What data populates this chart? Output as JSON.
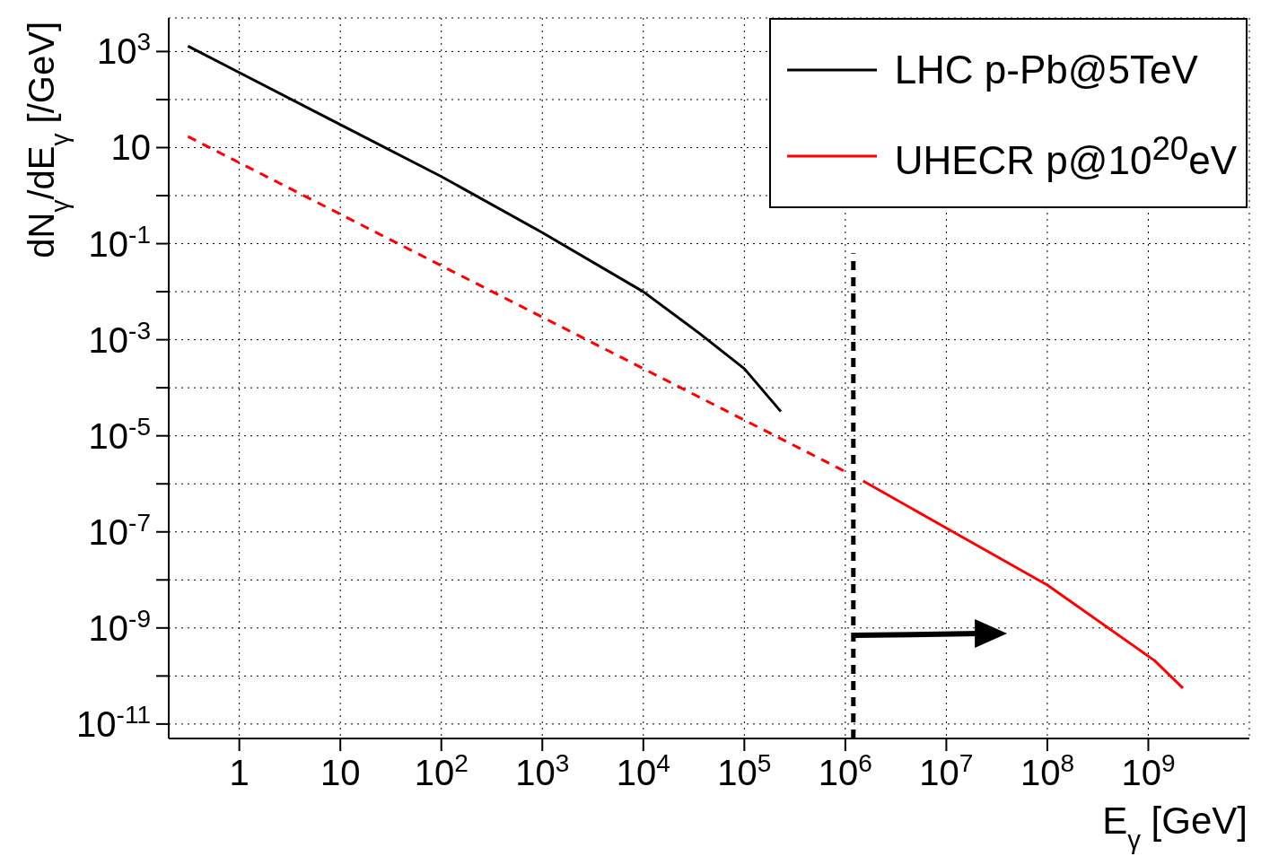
{
  "chart_data": {
    "type": "line",
    "xlabel": "E$_{γ}$ [GeV]",
    "ylabel": "dN$_{γ}$/dE$_{γ}$  [/GeV]",
    "log": "xy",
    "grid": true,
    "legend": "top right",
    "marker": "none",
    "xlim": [
      0.2,
      10000000000.0
    ],
    "xticks": [
      1,
      10,
      {
        "value": 100,
        "label": "10$^{2}$"
      },
      {
        "value": 1000,
        "label": "10$^{3}$"
      },
      {
        "value": 10000,
        "label": "10$^{4}$"
      },
      {
        "value": 100000,
        "label": "10$^{5}$"
      },
      {
        "value": 1000000,
        "label": "10$^{6}$"
      },
      {
        "value": 10000000,
        "label": "10$^{7}$"
      },
      {
        "value": 100000000,
        "label": "10$^{8}$"
      },
      {
        "value": 1000000000,
        "label": "10$^{9}$"
      }
    ],
    "ylim": [
      5e-12,
      5000
    ],
    "yticks": [
      {
        "value": 1e-11,
        "label": "10$^{-11}$"
      },
      {
        "value": 1e-10,
        "label": null
      },
      {
        "value": 1e-09,
        "label": "10$^{-9}$"
      },
      {
        "value": 1e-08,
        "label": null
      },
      {
        "value": 1e-07,
        "label": "10$^{-7}$"
      },
      {
        "value": 1e-06,
        "label": null
      },
      {
        "value": 1e-05,
        "label": "10$^{-5}$"
      },
      {
        "value": 0.0001,
        "label": null
      },
      {
        "value": 0.001,
        "label": "10$^{-3}$"
      },
      {
        "value": 0.01,
        "label": null
      },
      {
        "value": 0.1,
        "label": "10$^{-1}$"
      },
      {
        "value": 1,
        "label": null
      },
      10,
      {
        "value": 100,
        "label": null
      },
      {
        "value": 1000,
        "label": "10$^{3}$"
      }
    ],
    "series": [
      {
        "name": "LHC p-Pb@5TeV",
        "color": "#000000",
        "line_style": "solid",
        "x": [
          0.31,
          10,
          100,
          1000,
          10000,
          36000,
          100000,
          230000
        ],
        "values": [
          1300,
          30,
          2.5,
          0.17,
          0.01,
          0.00135,
          0.00025,
          3.2e-05
        ]
      },
      {
        "name": "UHECR p@10$^{20}$eV",
        "color": "#ff0000",
        "line_style": "solid",
        "x": [
          1500000,
          10000000,
          100000000,
          1150000000,
          2200000000
        ],
        "values": [
          1.15e-06,
          1.2e-07,
          7.8e-09,
          2.1e-10,
          5.6e-11
        ]
      },
      {
        "color": "#ff0000",
        "line_style": "dashed",
        "x": [
          0.31,
          1000000
        ],
        "values": [
          17,
          1.8e-06
        ]
      },
      {
        "color": "#000000",
        "line_style": "dashed",
        "x": [
          1200000,
          1200000
        ],
        "values": [
          5e-12,
          0.063
        ]
      }
    ]
  }
}
